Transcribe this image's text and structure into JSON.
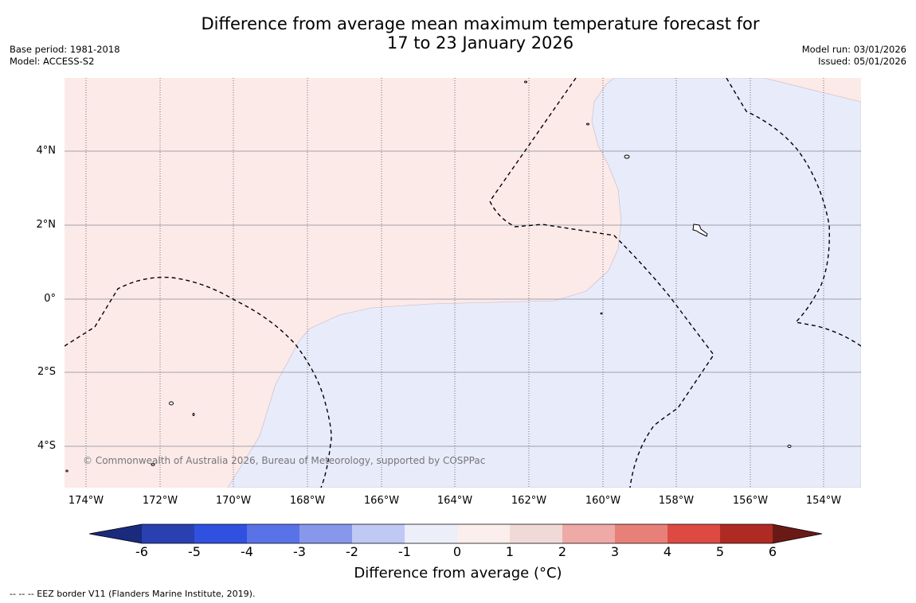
{
  "title": {
    "line1": "Difference from average mean maximum temperature forecast for",
    "line2": "17 to 23 January 2026"
  },
  "meta": {
    "base_period": "Base period: 1981-2018",
    "model": "Model: ACCESS-S2",
    "model_run": "Model run: 03/01/2026",
    "issued": "Issued: 05/01/2026"
  },
  "map": {
    "latitude_labels": [
      "4°N",
      "2°N",
      "0°",
      "2°S",
      "4°S"
    ],
    "longitude_labels": [
      "174°W",
      "172°W",
      "170°W",
      "168°W",
      "166°W",
      "164°W",
      "162°W",
      "160°W",
      "158°W",
      "156°W",
      "154°W"
    ],
    "copyright": "© Commonwealth of Australia 2026, Bureau of Meteorology, supported by COSPPac",
    "colors": {
      "warm_anomaly": "#fbeae8",
      "cool_anomaly": "#e8ebfa",
      "gridline": "#555555",
      "eez_border": "#000000"
    }
  },
  "colorbar": {
    "ticks": [
      "-6",
      "-5",
      "-4",
      "-3",
      "-2",
      "-1",
      "0",
      "1",
      "2",
      "3",
      "4",
      "5",
      "6"
    ],
    "colors": [
      "#1a2a7c",
      "#2a3fb0",
      "#3050e0",
      "#5a72e8",
      "#8797ec",
      "#c0c8f4",
      "#eceef9",
      "#fbeeec",
      "#f0dad8",
      "#eeaaa6",
      "#e8807a",
      "#dd4a42",
      "#b02a24",
      "#6a1a16"
    ],
    "label": "Difference from average (°C)"
  },
  "footnote": "--  --  -- EEZ border V11 (Flanders Marine Institute, 2019)."
}
